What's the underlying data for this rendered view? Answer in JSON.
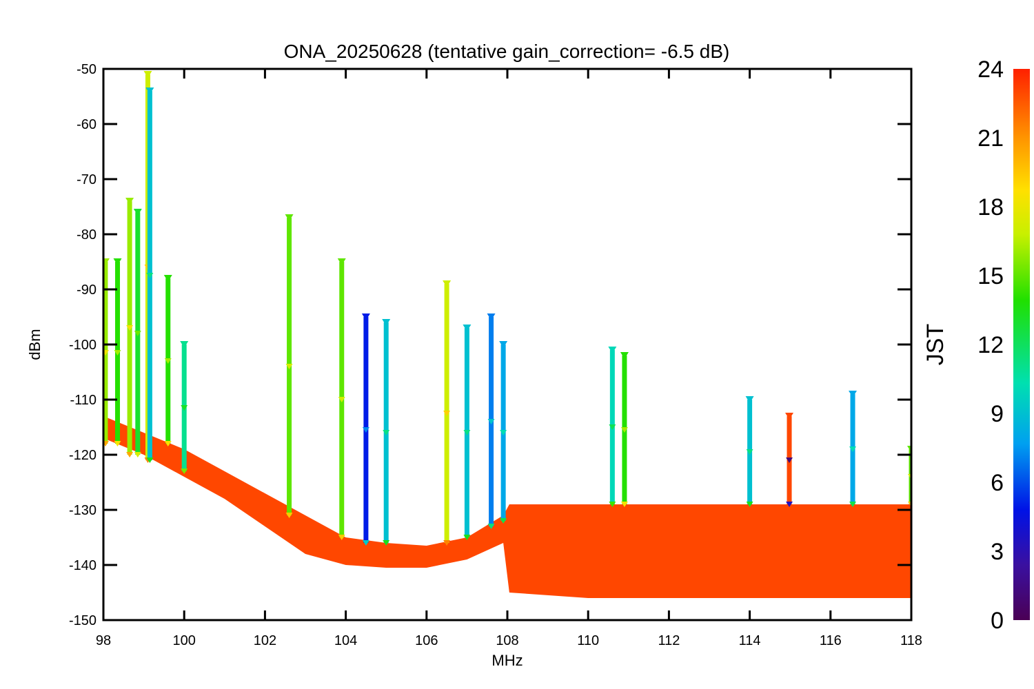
{
  "chart_data": {
    "type": "scatter",
    "title": "ONA_20250628 (tentative gain_correction= -6.5 dB)",
    "xlabel": "MHz",
    "ylabel": "dBm",
    "xlim": [
      98,
      118
    ],
    "ylim": [
      -150,
      -50
    ],
    "x_ticks": [
      "98",
      "100",
      "102",
      "104",
      "106",
      "108",
      "110",
      "112",
      "114",
      "116",
      "118"
    ],
    "y_ticks": [
      "-50",
      "-60",
      "-70",
      "-80",
      "-90",
      "-100",
      "-110",
      "-120",
      "-130",
      "-140",
      "-150"
    ],
    "colorbar": {
      "label": "JST",
      "range": [
        0,
        24
      ],
      "ticks": [
        "0",
        "3",
        "6",
        "9",
        "12",
        "15",
        "18",
        "21",
        "24"
      ],
      "colormap": "rainbow"
    },
    "noise_floor": {
      "x": [
        98,
        99,
        100,
        101,
        102,
        103,
        104,
        105,
        106,
        107,
        107.9,
        108.05,
        110,
        112,
        114,
        116,
        118
      ],
      "y_top": [
        -113,
        -116,
        -119,
        -123,
        -127,
        -131,
        -135,
        -136,
        -136.5,
        -135,
        -131,
        -129,
        -129,
        -129,
        -129,
        -129,
        -129
      ],
      "y_bottom": [
        -117,
        -120,
        -124,
        -128,
        -133,
        -138,
        -140,
        -140.5,
        -140.5,
        -139,
        -136,
        -145,
        -146,
        -146,
        -146,
        -146,
        -146
      ],
      "dominant_hour": 23
    },
    "spikes": [
      {
        "x": 98.05,
        "top": -85,
        "base": -118,
        "hour": 16
      },
      {
        "x": 98.35,
        "top": -85,
        "base": -118,
        "hour": 14
      },
      {
        "x": 98.65,
        "top": -74,
        "base": -120,
        "hour": 16
      },
      {
        "x": 98.85,
        "top": -76,
        "base": -120,
        "hour": 13
      },
      {
        "x": 99.1,
        "top": -51,
        "base": -121,
        "hour": 17
      },
      {
        "x": 99.15,
        "top": -54,
        "base": -121,
        "hour": 9
      },
      {
        "x": 99.6,
        "top": -88,
        "base": -118,
        "hour": 14
      },
      {
        "x": 100.0,
        "top": -100,
        "base": -123,
        "hour": 11
      },
      {
        "x": 102.6,
        "top": -77,
        "base": -131,
        "hour": 15
      },
      {
        "x": 103.9,
        "top": -85,
        "base": -135,
        "hour": 15
      },
      {
        "x": 104.5,
        "top": -95,
        "base": -136,
        "hour": 5
      },
      {
        "x": 105.0,
        "top": -96,
        "base": -136,
        "hour": 9
      },
      {
        "x": 106.5,
        "top": -89,
        "base": -136,
        "hour": 17
      },
      {
        "x": 107.0,
        "top": -97,
        "base": -135,
        "hour": 9
      },
      {
        "x": 107.6,
        "top": -95,
        "base": -133,
        "hour": 7
      },
      {
        "x": 107.9,
        "top": -100,
        "base": -132,
        "hour": 8
      },
      {
        "x": 110.6,
        "top": -101,
        "base": -129,
        "hour": 10
      },
      {
        "x": 110.9,
        "top": -102,
        "base": -129,
        "hour": 14
      },
      {
        "x": 114.0,
        "top": -110,
        "base": -129,
        "hour": 9
      },
      {
        "x": 114.98,
        "top": -113,
        "base": -129,
        "hour": 23
      },
      {
        "x": 116.55,
        "top": -109,
        "base": -129,
        "hour": 8
      },
      {
        "x": 118.0,
        "top": -119,
        "base": -129,
        "hour": 15
      }
    ],
    "grid": false,
    "legend": "colorbar-right"
  }
}
